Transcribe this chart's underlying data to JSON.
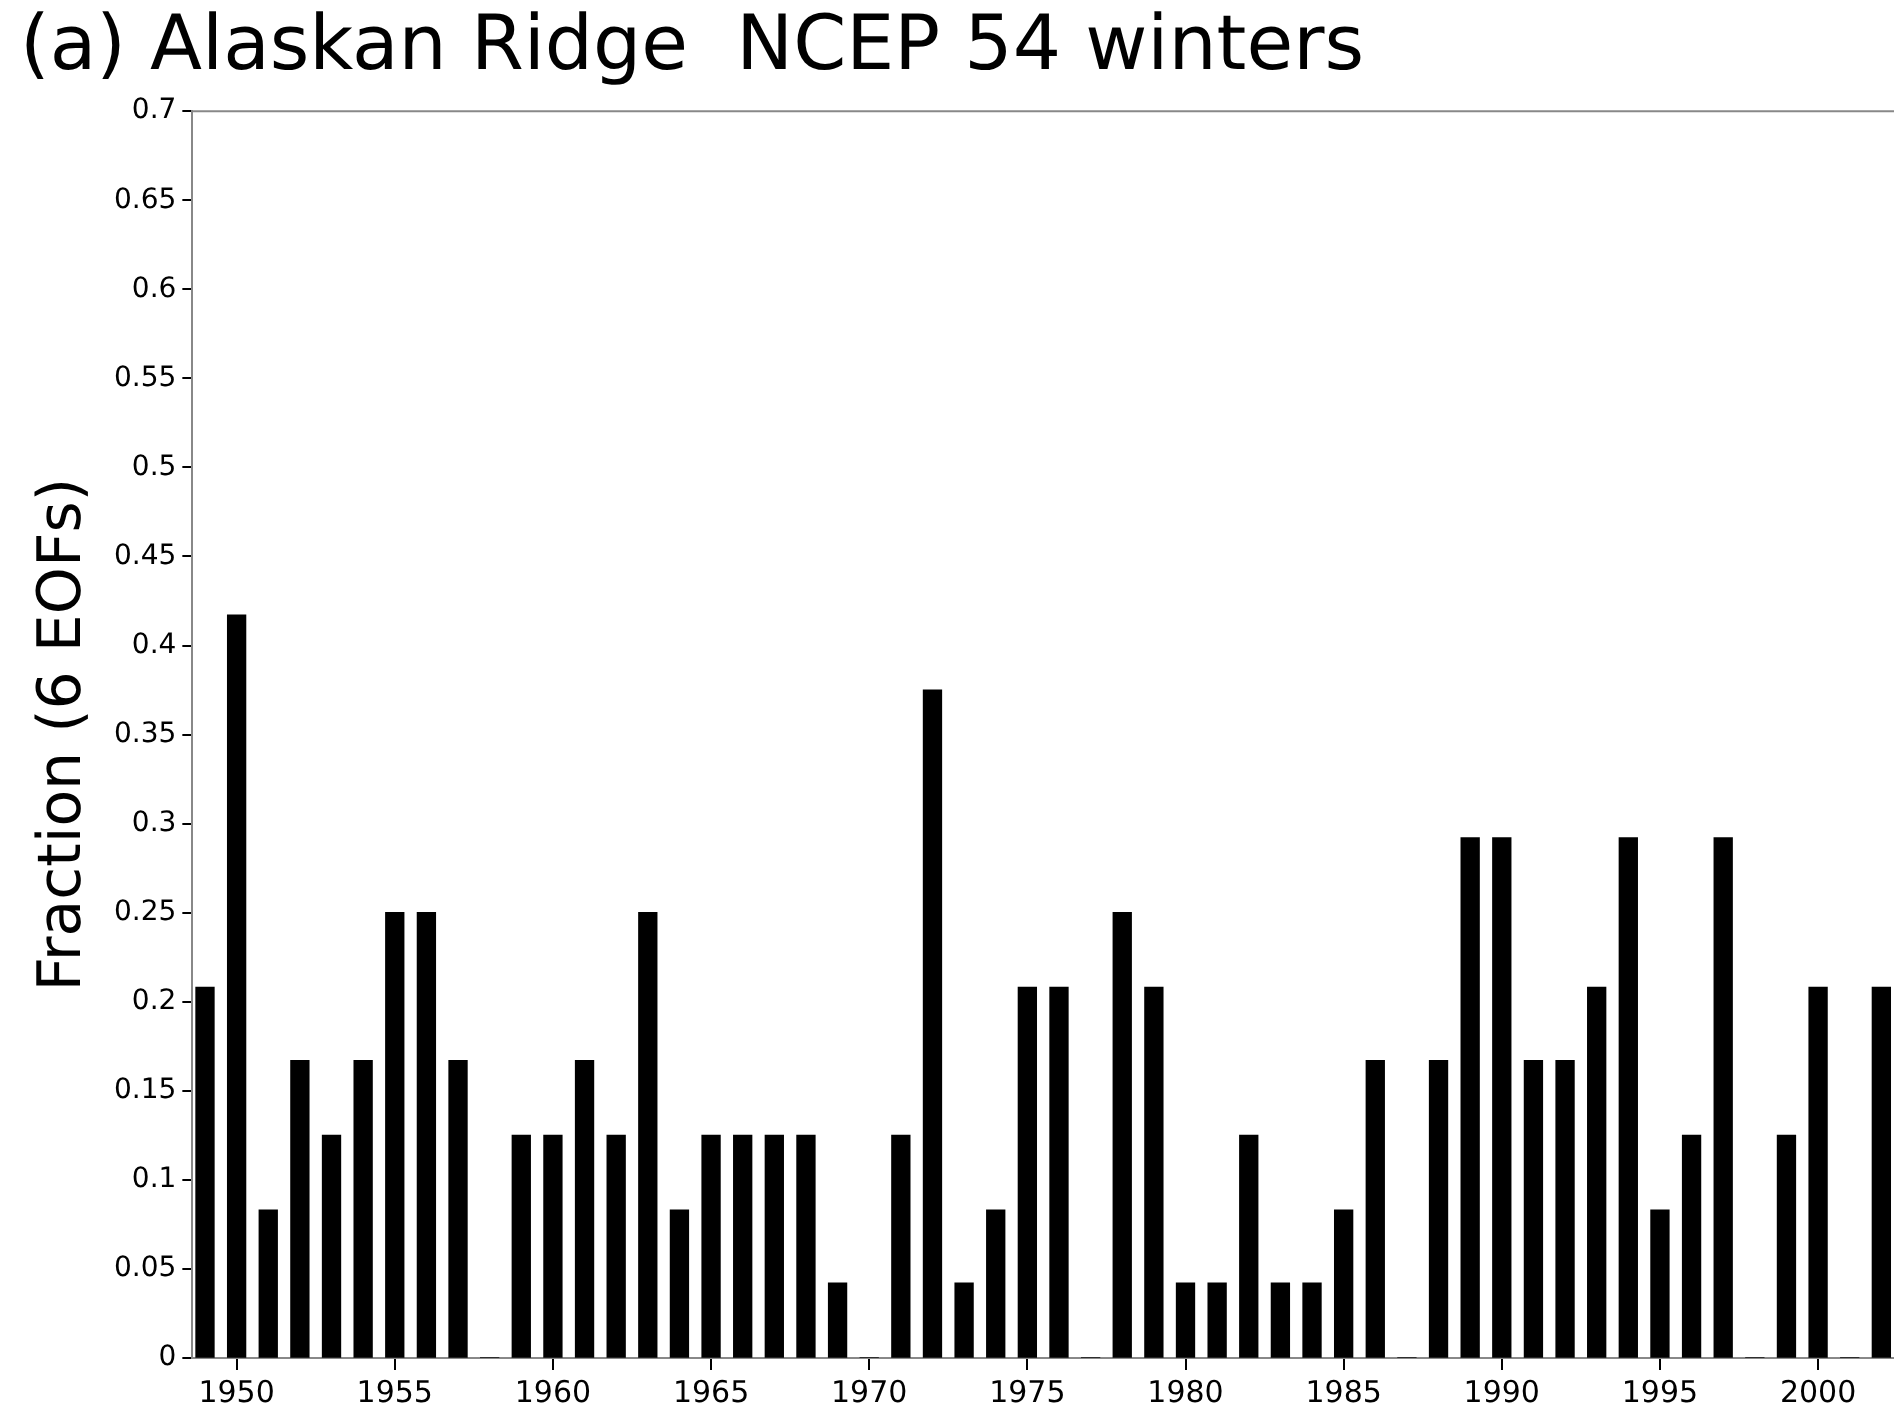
{
  "chart_data": {
    "type": "bar",
    "title": "(a) Alaskan Ridge  NCEP 54 winters",
    "ylabel": "Fraction (6 EOFs)",
    "x": [
      1949,
      1950,
      1951,
      1952,
      1953,
      1954,
      1955,
      1956,
      1957,
      1958,
      1959,
      1960,
      1961,
      1962,
      1963,
      1964,
      1965,
      1966,
      1967,
      1968,
      1969,
      1970,
      1971,
      1972,
      1973,
      1974,
      1975,
      1976,
      1977,
      1978,
      1979,
      1980,
      1981,
      1982,
      1983,
      1984,
      1985,
      1986,
      1987,
      1988,
      1989,
      1990,
      1991,
      1992,
      1993,
      1994,
      1995,
      1996,
      1997,
      1998,
      1999,
      2000,
      2001,
      2002
    ],
    "values": [
      0.208,
      0.417,
      0.083,
      0.167,
      0.125,
      0.167,
      0.25,
      0.25,
      0.167,
      0,
      0.125,
      0.125,
      0.167,
      0.125,
      0.25,
      0.083,
      0.125,
      0.125,
      0.125,
      0.125,
      0.042,
      0,
      0.125,
      0.375,
      0.042,
      0.083,
      0.208,
      0.208,
      0,
      0.25,
      0.208,
      0.042,
      0.042,
      0.125,
      0.042,
      0.042,
      0.083,
      0.167,
      0,
      0.167,
      0.292,
      0.292,
      0.167,
      0.167,
      0.208,
      0.292,
      0.083,
      0.125,
      0.292,
      0,
      0.125,
      0.208,
      0,
      0.208
    ],
    "color": "#000000",
    "xlim": [
      1948.6,
      2002.4
    ],
    "xticks": [
      1950,
      1955,
      1960,
      1965,
      1970,
      1975,
      1980,
      1985,
      1990,
      1995,
      2000
    ],
    "ylim": [
      0,
      0.7
    ],
    "yticks": [
      0,
      0.05,
      0.1,
      0.15,
      0.2,
      0.25,
      0.3,
      0.35,
      0.4,
      0.45,
      0.5,
      0.55,
      0.6,
      0.65,
      0.7
    ],
    "grid": false,
    "legend": false
  }
}
